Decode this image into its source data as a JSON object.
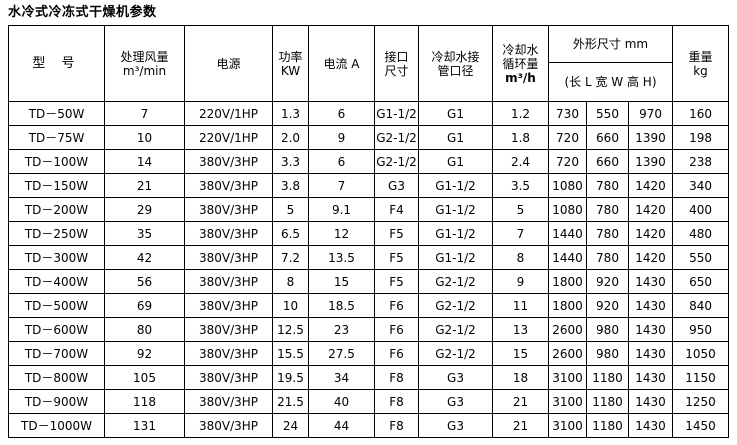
{
  "title": "水冷式冷冻式干燥机参数",
  "headers": {
    "model": "型 号",
    "airflow_l1": "处理风量",
    "airflow_l2": "m³/min",
    "power": "电源",
    "kw_l1": "功率",
    "kw_l2": "KW",
    "current": "电流 A",
    "port_l1": "接口",
    "port_l2": "尺寸",
    "water_pipe_l1": "冷却水接",
    "water_pipe_l2": "管口径",
    "water_circ_l1": "冷却水",
    "water_circ_l2": "循环量",
    "water_circ_l3": "m³/h",
    "dims": "外形尺寸 mm",
    "dims_sub": "(长 L 宽 W 高 H)",
    "weight_l1": "重量",
    "weight_l2": "kg"
  },
  "rows": [
    [
      "TD－50W",
      "7",
      "220V/1HP",
      "1.3",
      "6",
      "G1-1/2",
      "G1",
      "1.2",
      "730",
      "550",
      "970",
      "160"
    ],
    [
      "TD－75W",
      "10",
      "220V/1HP",
      "2.0",
      "9",
      "G2-1/2",
      "G1",
      "1.8",
      "720",
      "660",
      "1390",
      "198"
    ],
    [
      "TD－100W",
      "14",
      "380V/3HP",
      "3.3",
      "6",
      "G2-1/2",
      "G1",
      "2.4",
      "720",
      "660",
      "1390",
      "238"
    ],
    [
      "TD－150W",
      "21",
      "380V/3HP",
      "3.8",
      "7",
      "G3",
      "G1-1/2",
      "3.5",
      "1080",
      "780",
      "1420",
      "340"
    ],
    [
      "TD－200W",
      "29",
      "380V/3HP",
      "5",
      "9.1",
      "F4",
      "G1-1/2",
      "5",
      "1080",
      "780",
      "1420",
      "400"
    ],
    [
      "TD－250W",
      "35",
      "380V/3HP",
      "6.5",
      "12",
      "F5",
      "G1-1/2",
      "7",
      "1440",
      "780",
      "1420",
      "480"
    ],
    [
      "TD－300W",
      "42",
      "380V/3HP",
      "7.2",
      "13.5",
      "F5",
      "G1-1/2",
      "8",
      "1440",
      "780",
      "1420",
      "550"
    ],
    [
      "TD－400W",
      "56",
      "380V/3HP",
      "8",
      "15",
      "F5",
      "G2-1/2",
      "9",
      "1800",
      "920",
      "1430",
      "650"
    ],
    [
      "TD－500W",
      "69",
      "380V/3HP",
      "10",
      "18.5",
      "F6",
      "G2-1/2",
      "11",
      "1800",
      "920",
      "1430",
      "840"
    ],
    [
      "TD－600W",
      "80",
      "380V/3HP",
      "12.5",
      "23",
      "F6",
      "G2-1/2",
      "13",
      "2600",
      "980",
      "1430",
      "950"
    ],
    [
      "TD－700W",
      "92",
      "380V/3HP",
      "15.5",
      "27.5",
      "F6",
      "G2-1/2",
      "15",
      "2600",
      "980",
      "1430",
      "1050"
    ],
    [
      "TD－800W",
      "105",
      "380V/3HP",
      "19.5",
      "34",
      "F8",
      "G3",
      "18",
      "3100",
      "1180",
      "1430",
      "1150"
    ],
    [
      "TD－900W",
      "118",
      "380V/3HP",
      "21.5",
      "40",
      "F8",
      "G3",
      "21",
      "3100",
      "1180",
      "1430",
      "1250"
    ],
    [
      "TD－1000W",
      "131",
      "380V/3HP",
      "24",
      "44",
      "F8",
      "G3",
      "21",
      "3100",
      "1180",
      "1430",
      "1450"
    ]
  ]
}
